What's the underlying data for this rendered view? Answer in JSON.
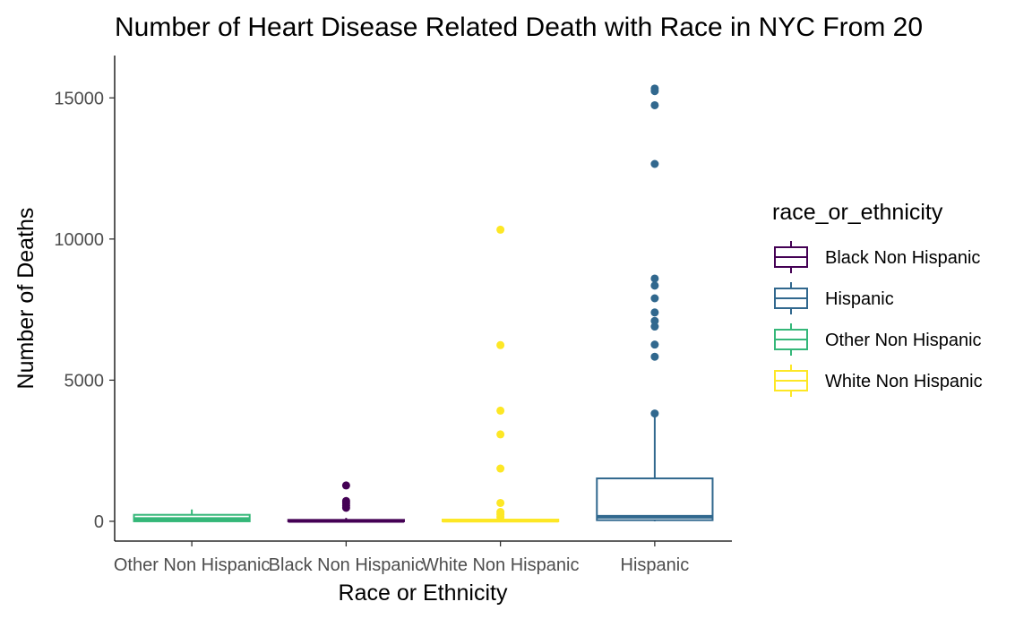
{
  "chart_data": {
    "type": "boxplot",
    "title": "Number of Heart Disease Related Death with Race in NYC From 20",
    "xlabel": "Race or Ethnicity",
    "ylabel": "Number of Deaths",
    "ylim": [
      -700,
      16500
    ],
    "yticks": [
      0,
      5000,
      10000,
      15000
    ],
    "grid": false,
    "legend": {
      "title": "race_or_ethnicity",
      "position": "right"
    },
    "categories": [
      "Other Non Hispanic",
      "Black Non Hispanic",
      "White Non Hispanic",
      "Hispanic"
    ],
    "series": [
      {
        "name": "Other Non Hispanic",
        "color": "#35b779",
        "min": 0,
        "q1": 0,
        "median": 80,
        "q3": 230,
        "max": 420,
        "outliers": []
      },
      {
        "name": "Black Non Hispanic",
        "color": "#440154",
        "min": 0,
        "q1": 0,
        "median": 15,
        "q3": 50,
        "max": 120,
        "outliers": [
          480,
          560,
          650,
          720,
          1270
        ]
      },
      {
        "name": "White Non Hispanic",
        "color": "#fde725",
        "min": 0,
        "q1": 0,
        "median": 20,
        "q3": 60,
        "max": 140,
        "outliers": [
          150,
          250,
          330,
          650,
          1870,
          3080,
          3920,
          6240,
          10330
        ]
      },
      {
        "name": "Hispanic",
        "color": "#31688e",
        "min": 0,
        "q1": 40,
        "median": 160,
        "q3": 1520,
        "max": 3820,
        "outliers": [
          3820,
          5830,
          6260,
          6900,
          7100,
          7400,
          7900,
          8350,
          8600,
          12660,
          14740,
          15240,
          15330
        ]
      }
    ],
    "legend_entries": [
      "Black Non Hispanic",
      "Hispanic",
      "Other Non Hispanic",
      "White Non Hispanic"
    ]
  }
}
